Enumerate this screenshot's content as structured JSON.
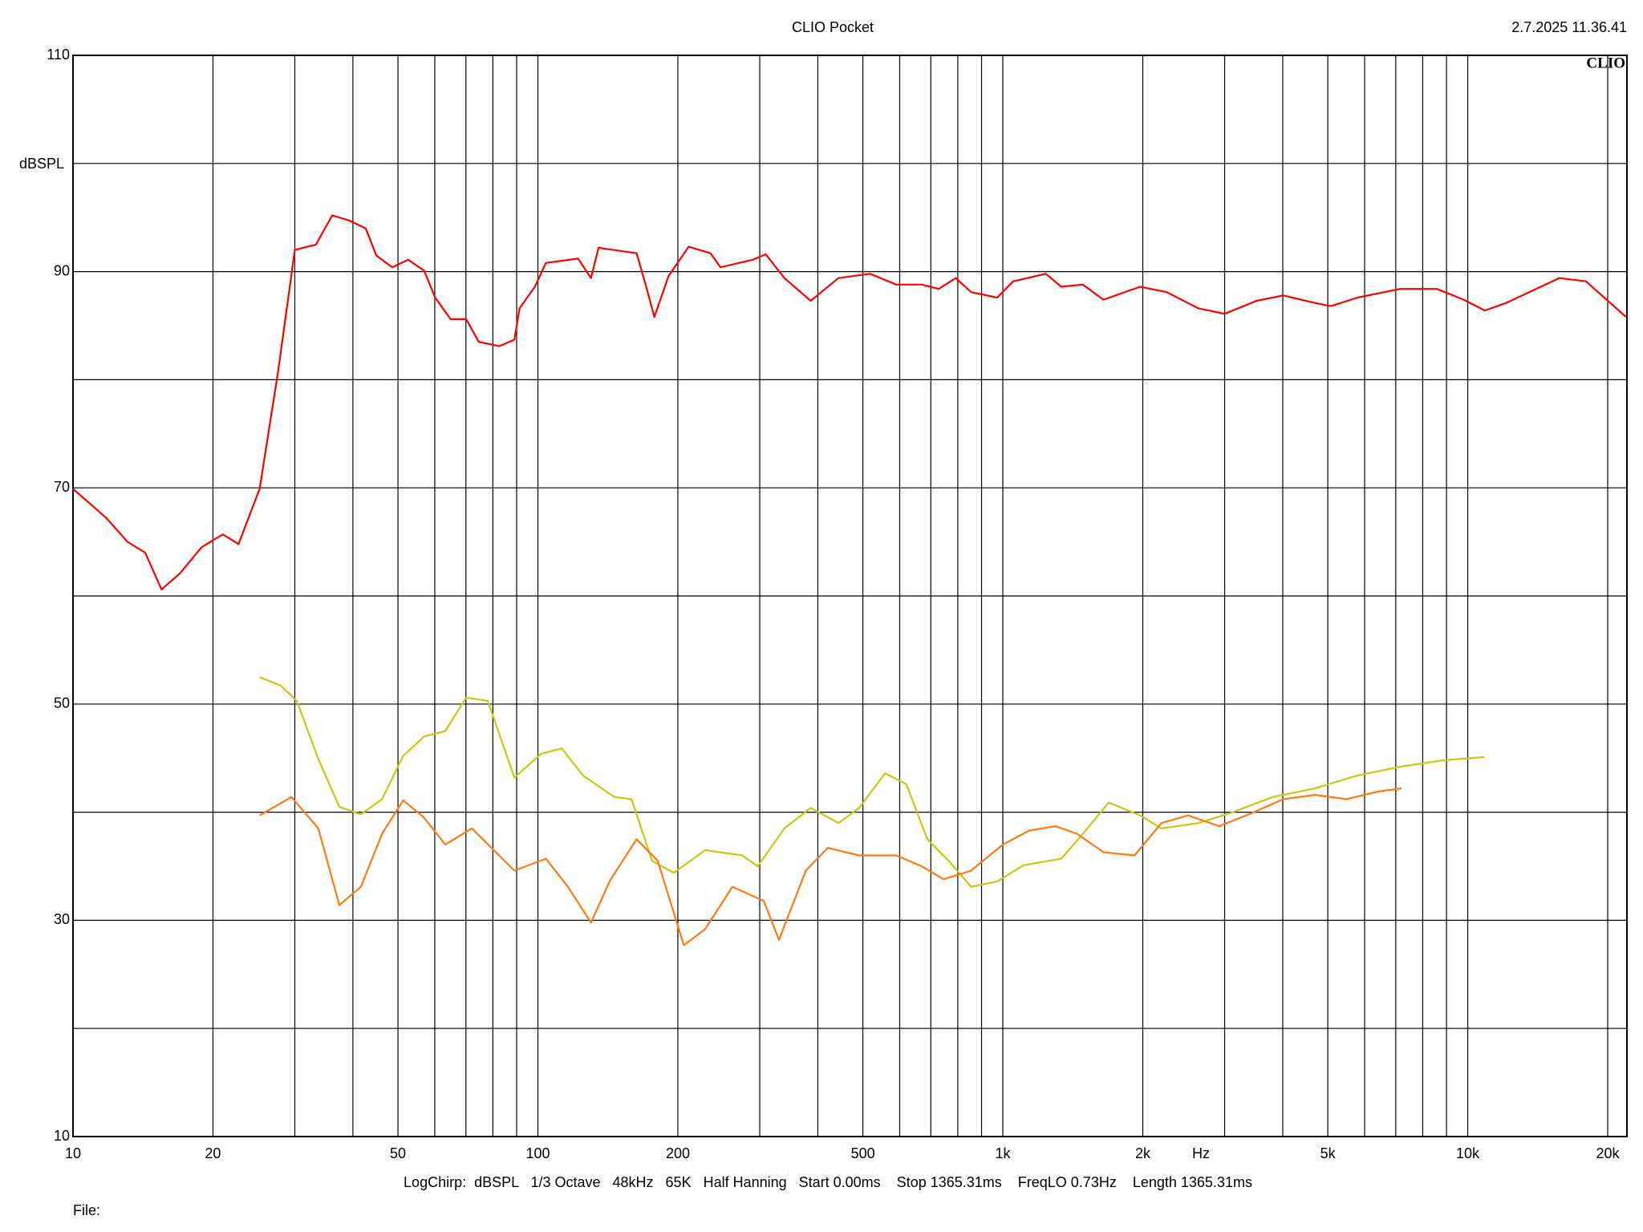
{
  "chart_data": {
    "type": "line",
    "title": "CLIO Pocket",
    "timestamp": "2.7.2025 11.36.41",
    "logo": "CLIO",
    "y_label": "dBSPL",
    "x_label": "Hz",
    "info": "LogChirp:  dBSPL   1/3 Octave   48kHz   65K   Half Hanning   Start 0.00ms    Stop 1365.31ms    FreqLO 0.73Hz    Length 1365.31ms",
    "file_label": "File:",
    "x_scale": "log",
    "grid": true,
    "xlim": [
      10,
      22000
    ],
    "ylim": [
      10,
      110
    ],
    "xticks": [
      10,
      20,
      50,
      100,
      200,
      500,
      {
        "value": 1000,
        "label": "1k"
      },
      {
        "value": 2000,
        "label": "2k"
      },
      {
        "value": 5000,
        "label": "5k"
      },
      {
        "value": 10000,
        "label": "10k"
      },
      {
        "value": 20000,
        "label": "20k"
      }
    ],
    "xgrid_minor": [
      30,
      40,
      60,
      70,
      80,
      90,
      300,
      400,
      600,
      700,
      800,
      900,
      3000,
      4000,
      6000,
      7000,
      8000,
      9000
    ],
    "yticks": [
      10,
      30,
      50,
      70,
      90,
      110
    ],
    "ygrid_minor": [
      20,
      40,
      60,
      80,
      100
    ],
    "series": [
      {
        "color": "#ff0000",
        "x": [
          10,
          11.8,
          13.1,
          14.3,
          15.5,
          17,
          18.9,
          21,
          22.7,
          25.2,
          27.6,
          30,
          33.3,
          36.1,
          39.4,
          42.6,
          44.9,
          48.6,
          52.6,
          56.9,
          60.1,
          64.9,
          70.1,
          74.6,
          82.5,
          89,
          91.3,
          98.5,
          104,
          122,
          130,
          135,
          163,
          171,
          178,
          191,
          211,
          235,
          247,
          290,
          309,
          339,
          386,
          443,
          518,
          590,
          669,
          728,
          792,
          855,
          972,
          1053,
          1237,
          1336,
          1486,
          1646,
          1973,
          2251,
          2634,
          3000,
          3515,
          4010,
          4690,
          5077,
          5791,
          7150,
          8580,
          9800,
          10880,
          12090,
          15740,
          17950,
          21900
        ],
        "values": [
          69.9,
          67.2,
          65.0,
          64.0,
          60.6,
          62.1,
          64.5,
          65.7,
          64.8,
          69.9,
          80.7,
          92.0,
          92.5,
          95.2,
          94.7,
          94.0,
          91.5,
          90.4,
          91.1,
          90.1,
          87.6,
          85.6,
          85.6,
          83.5,
          83.1,
          83.7,
          86.6,
          88.6,
          90.8,
          91.2,
          89.4,
          92.2,
          91.7,
          88.6,
          85.8,
          89.6,
          92.3,
          91.7,
          90.4,
          91.1,
          91.6,
          89.4,
          87.3,
          89.4,
          89.8,
          88.8,
          88.8,
          88.4,
          89.4,
          88.1,
          87.6,
          89.1,
          89.8,
          88.6,
          88.8,
          87.4,
          88.6,
          88.1,
          86.6,
          86.1,
          87.3,
          87.8,
          87.1,
          86.8,
          87.6,
          88.4,
          88.4,
          87.4,
          86.4,
          87.1,
          89.4,
          89.1,
          85.8
        ]
      },
      {
        "color": "#c8c814",
        "x": [
          25.2,
          28,
          30.3,
          33.7,
          37.4,
          41.6,
          46.2,
          51.3,
          56.9,
          63.2,
          70.1,
          78,
          89,
          101.6,
          112.5,
          125,
          146,
          159,
          176,
          196,
          229,
          275,
          297,
          339,
          386,
          443,
          491,
          558,
          620,
          688,
          765,
          855,
          972,
          1109,
          1336,
          1486,
          1690,
          1973,
          2194,
          2634,
          3080,
          3805,
          4690,
          5791,
          7150,
          8830,
          10880
        ],
        "values": [
          52.5,
          51.7,
          50.3,
          44.9,
          40.5,
          39.8,
          41.2,
          45.2,
          47.0,
          47.5,
          50.6,
          50.3,
          43.2,
          45.4,
          45.9,
          43.4,
          41.4,
          41.2,
          35.5,
          34.4,
          36.5,
          36.0,
          35.0,
          38.5,
          40.4,
          39.0,
          40.4,
          43.6,
          42.6,
          37.5,
          35.5,
          33.1,
          33.6,
          35.1,
          35.7,
          38.0,
          40.9,
          39.7,
          38.5,
          39.0,
          39.9,
          41.4,
          42.2,
          43.4,
          44.2,
          44.8,
          45.1
        ]
      },
      {
        "color": "#ff7a14",
        "x": [
          25.2,
          29.5,
          33.7,
          37.4,
          41.6,
          46.2,
          51.3,
          56.9,
          63.2,
          72.1,
          82.5,
          89,
          104,
          116,
          130,
          143,
          163,
          181,
          206,
          229,
          262,
          306,
          330,
          377,
          420,
          491,
          590,
          669,
          745,
          855,
          1000,
          1140,
          1300,
          1445,
          1646,
          1920,
          2194,
          2504,
          2920,
          3425,
          4010,
          4690,
          5480,
          6400,
          7200
        ],
        "values": [
          39.7,
          41.4,
          38.5,
          31.4,
          33.1,
          38.0,
          41.1,
          39.5,
          37.0,
          38.5,
          36.0,
          34.6,
          35.7,
          33.1,
          29.8,
          33.7,
          37.5,
          35.5,
          27.7,
          29.2,
          33.1,
          31.8,
          28.2,
          34.6,
          36.7,
          36.0,
          36.0,
          35.0,
          33.8,
          34.6,
          37.0,
          38.3,
          38.7,
          38.0,
          36.3,
          36.0,
          39.0,
          39.7,
          38.7,
          39.9,
          41.2,
          41.6,
          41.2,
          41.9,
          42.2
        ]
      }
    ]
  }
}
